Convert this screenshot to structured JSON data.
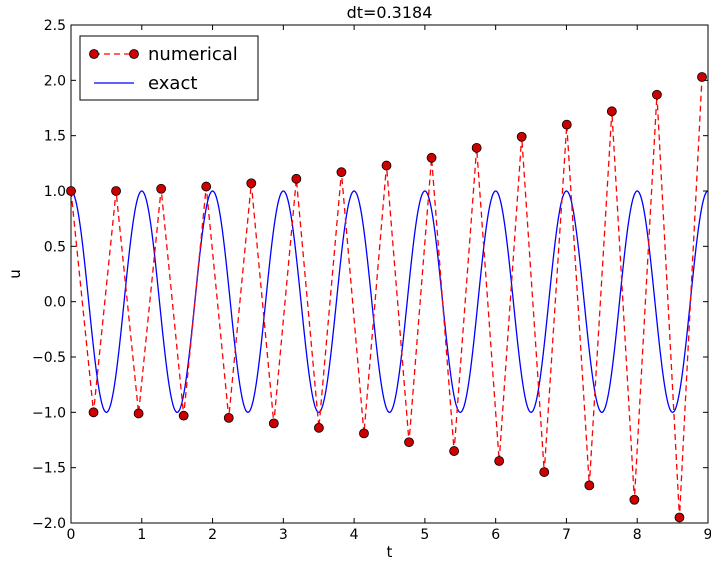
{
  "chart_data": {
    "type": "line",
    "title": "dt=0.3184",
    "xlabel": "t",
    "ylabel": "u",
    "xlim": [
      0,
      9
    ],
    "ylim": [
      -2.0,
      2.5
    ],
    "xticks": [
      "0",
      "1",
      "2",
      "3",
      "4",
      "5",
      "6",
      "7",
      "8",
      "9"
    ],
    "yticks": [
      "−2.0",
      "−1.5",
      "−1.0",
      "−0.5",
      "0.0",
      "0.5",
      "1.0",
      "1.5",
      "2.0",
      "2.5"
    ],
    "grid": false,
    "legend": "top-left",
    "series": [
      {
        "name": "numerical",
        "style": "dashed-with-markers",
        "color": "#ff0000",
        "marker_color": "#cc0000",
        "x": [
          0.0,
          0.3184,
          0.6368,
          0.9552,
          1.2736,
          1.592,
          1.9104,
          2.2288,
          2.5472,
          2.8656,
          3.184,
          3.5024,
          3.8208,
          4.1392,
          4.4576,
          4.776,
          5.0944,
          5.4128,
          5.7312,
          6.0496,
          6.368,
          6.6864,
          7.0048,
          7.3232,
          7.6416,
          7.96,
          8.2784,
          8.5968,
          8.9152
        ],
        "y": [
          1.0,
          -1.0,
          1.0,
          -1.01,
          1.02,
          -1.03,
          1.04,
          -1.05,
          1.07,
          -1.1,
          1.11,
          -1.14,
          1.17,
          -1.19,
          1.23,
          -1.27,
          1.3,
          -1.35,
          1.39,
          -1.44,
          1.49,
          -1.54,
          1.6,
          -1.66,
          1.72,
          -1.79,
          1.87,
          -1.95,
          2.03
        ]
      },
      {
        "name": "exact",
        "style": "solid",
        "color": "#0000ff",
        "function": "cos(2*pi*t)",
        "x_range": [
          0,
          9
        ]
      }
    ]
  }
}
